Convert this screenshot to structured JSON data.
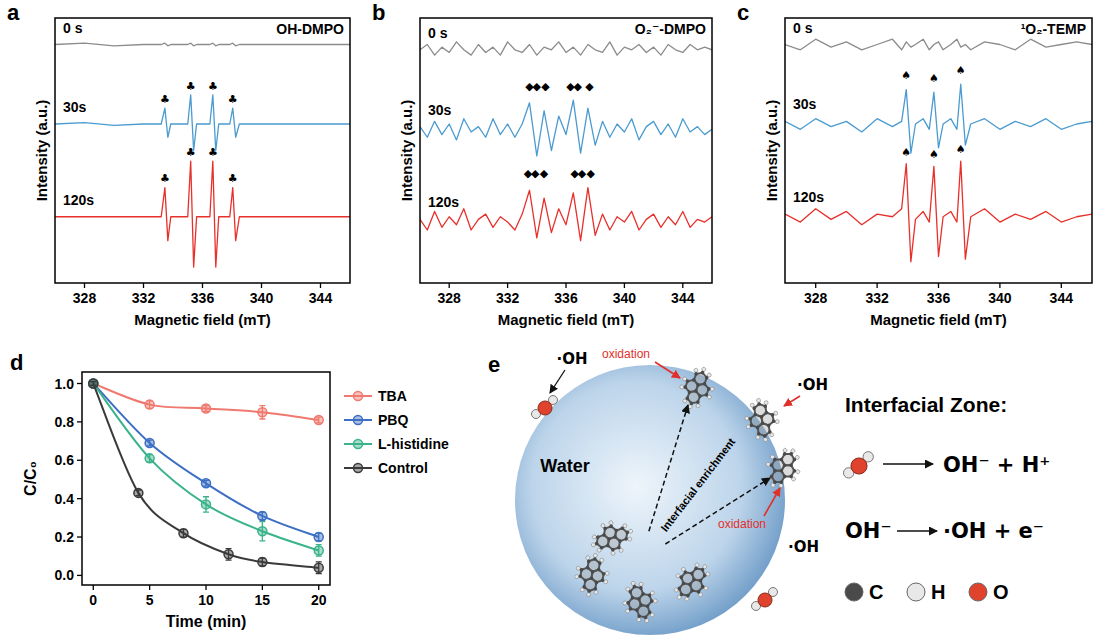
{
  "chart_data": [
    {
      "panel_label": "a",
      "type": "line",
      "title": "OH-DMPO",
      "xlabel": "Magnetic field (mT)",
      "ylabel": "Intensity (a.u.)",
      "tick_labels": "x",
      "x": [
        326,
        328,
        330,
        332,
        333.2,
        333.45,
        333.65,
        333.85,
        334.2,
        335.0,
        335.2,
        335.4,
        335.6,
        335.9,
        336.5,
        336.7,
        336.9,
        337.1,
        337.5,
        337.85,
        338.05,
        338.25,
        338.5,
        340,
        342,
        344,
        346
      ],
      "xlim": [
        326,
        346
      ],
      "xticks": [
        328,
        332,
        336,
        340,
        344
      ],
      "ylim": [
        0,
        10
      ],
      "series": [
        {
          "name": "0 s",
          "color": "#8c8c8c",
          "values": [
            9,
            9.05,
            8.95,
            9,
            9,
            9.05,
            8.95,
            9,
            9,
            9,
            9.05,
            8.95,
            9,
            9,
            9,
            9.05,
            8.95,
            9,
            9,
            9,
            9.05,
            8.95,
            9,
            9,
            9,
            9,
            9
          ]
        },
        {
          "name": "30s",
          "color": "#4a9bd0",
          "values": [
            6,
            6.05,
            5.95,
            6,
            6,
            6.6,
            5.5,
            6,
            6,
            6,
            7.1,
            5.0,
            6,
            6,
            6,
            7.1,
            5.0,
            6,
            6,
            6,
            6.6,
            5.5,
            6,
            6,
            6,
            6,
            6
          ]
        },
        {
          "name": "120s",
          "color": "#e8302a",
          "values": [
            2.5,
            2.5,
            2.5,
            2.5,
            2.5,
            3.6,
            1.6,
            2.5,
            2.5,
            2.5,
            4.6,
            0.6,
            2.5,
            2.5,
            2.5,
            4.6,
            0.6,
            2.5,
            2.5,
            2.5,
            3.6,
            1.6,
            2.5,
            2.5,
            2.5,
            2.5,
            2.5
          ]
        }
      ],
      "annotations": [
        {
          "text": "♣",
          "x": 333.45,
          "y": 6.8
        },
        {
          "text": "♣",
          "x": 335.2,
          "y": 7.3
        },
        {
          "text": "♣",
          "x": 336.7,
          "y": 7.3
        },
        {
          "text": "♣",
          "x": 338.05,
          "y": 6.8
        },
        {
          "text": "♣",
          "x": 333.45,
          "y": 3.8
        },
        {
          "text": "♣",
          "x": 335.2,
          "y": 4.8
        },
        {
          "text": "♣",
          "x": 336.7,
          "y": 4.8
        },
        {
          "text": "♣",
          "x": 338.05,
          "y": 3.8
        }
      ]
    },
    {
      "panel_label": "b",
      "type": "line",
      "title": "O₂⁻-DMPO",
      "xlabel": "Magnetic field (mT)",
      "ylabel": "Intensity (a.u.)",
      "tick_labels": "x",
      "x": [
        326,
        326.5,
        327,
        327.5,
        328,
        328.5,
        329,
        329.5,
        330,
        330.5,
        331,
        331.5,
        332,
        332.5,
        333,
        333.5,
        334,
        334.5,
        335,
        335.5,
        336,
        336.5,
        337,
        337.5,
        338,
        338.5,
        339,
        339.5,
        340,
        340.5,
        341,
        341.5,
        342,
        342.5,
        343,
        343.5,
        344,
        344.5,
        345,
        345.5,
        346
      ],
      "xlim": [
        326,
        346
      ],
      "xticks": [
        328,
        332,
        336,
        340,
        344
      ],
      "ylim": [
        0,
        10
      ],
      "series": [
        {
          "name": "0 s",
          "color": "#8c8c8c",
          "values": [
            8.8,
            9.0,
            8.6,
            8.9,
            8.7,
            9.1,
            8.8,
            8.6,
            9.0,
            8.7,
            8.9,
            8.6,
            9.1,
            8.8,
            8.7,
            9.0,
            8.6,
            8.9,
            8.8,
            9.1,
            8.7,
            8.9,
            8.6,
            9.0,
            8.8,
            8.7,
            9.1,
            8.6,
            8.9,
            8.8,
            9.0,
            8.7,
            8.9,
            8.6,
            9.0,
            8.8,
            8.7,
            9.0,
            8.8,
            8.9,
            8.8
          ]
        },
        {
          "name": "30s",
          "color": "#4a9bd0",
          "values": [
            5.9,
            5.5,
            6.1,
            5.6,
            6.0,
            5.4,
            6.2,
            5.7,
            5.9,
            5.5,
            6.2,
            5.6,
            6.0,
            5.5,
            6.0,
            6.8,
            4.8,
            6.5,
            5.0,
            6.3,
            5.6,
            6.9,
            4.9,
            6.6,
            5.2,
            6.1,
            5.5,
            6.0,
            5.7,
            6.2,
            5.4,
            5.9,
            6.1,
            5.6,
            6.0,
            5.5,
            6.2,
            5.7,
            5.9,
            5.6,
            5.8
          ]
        },
        {
          "name": "120s",
          "color": "#e8302a",
          "values": [
            2.4,
            2.0,
            2.7,
            2.1,
            2.5,
            2.2,
            2.8,
            2.0,
            2.4,
            2.6,
            2.1,
            2.5,
            2.3,
            2.0,
            2.6,
            3.5,
            1.7,
            3.2,
            1.9,
            2.8,
            2.2,
            3.4,
            1.6,
            3.6,
            1.8,
            2.6,
            2.0,
            2.5,
            2.3,
            2.7,
            2.0,
            2.4,
            2.6,
            2.1,
            2.5,
            2.2,
            2.7,
            2.1,
            2.4,
            2.3,
            2.5
          ]
        }
      ],
      "annotations": [
        {
          "text": "◆",
          "x": 333.5,
          "y": 7.3
        },
        {
          "text": "◆",
          "x": 334.0,
          "y": 7.3
        },
        {
          "text": "◆",
          "x": 334.6,
          "y": 7.3
        },
        {
          "text": "◆",
          "x": 336.3,
          "y": 7.3
        },
        {
          "text": "◆",
          "x": 336.8,
          "y": 7.3
        },
        {
          "text": "◆",
          "x": 337.6,
          "y": 7.3
        },
        {
          "text": "◆",
          "x": 333.4,
          "y": 4.0
        },
        {
          "text": "◆",
          "x": 333.9,
          "y": 4.0
        },
        {
          "text": "◆",
          "x": 334.5,
          "y": 4.0
        },
        {
          "text": "◆",
          "x": 336.6,
          "y": 4.0
        },
        {
          "text": "◆",
          "x": 337.1,
          "y": 4.0
        },
        {
          "text": "◆",
          "x": 337.7,
          "y": 4.0
        }
      ]
    },
    {
      "panel_label": "c",
      "type": "line",
      "title": "¹O₂-TEMP",
      "xlabel": "Magnetic field (mT)",
      "ylabel": "Intensity (a.u.)",
      "tick_labels": "x",
      "x": [
        326,
        327,
        328,
        329,
        330,
        331,
        332,
        333,
        333.6,
        333.9,
        334.2,
        334.5,
        335,
        335.4,
        335.7,
        336.0,
        336.3,
        336.8,
        337.2,
        337.45,
        337.75,
        338.1,
        339,
        340,
        341,
        342,
        343,
        344,
        345,
        346
      ],
      "xlim": [
        326,
        346
      ],
      "xticks": [
        328,
        332,
        336,
        340,
        344
      ],
      "ylim": [
        0,
        10
      ],
      "series": [
        {
          "name": "0 s",
          "color": "#8c8c8c",
          "values": [
            9.0,
            8.8,
            9.2,
            8.9,
            9.1,
            8.8,
            9.0,
            9.2,
            8.8,
            9.1,
            8.9,
            9.0,
            9.2,
            8.8,
            9.0,
            9.1,
            8.8,
            9.0,
            9.2,
            8.9,
            9.0,
            8.8,
            9.1,
            9.0,
            8.8,
            9.2,
            8.9,
            9.0,
            9.1,
            9.0
          ]
        },
        {
          "name": "30s",
          "color": "#4a9bd0",
          "values": [
            6.1,
            5.8,
            6.2,
            5.9,
            6.1,
            5.7,
            6.2,
            5.9,
            6.1,
            7.3,
            4.9,
            6.0,
            6.2,
            5.8,
            7.2,
            5.1,
            6.0,
            6.2,
            5.8,
            7.5,
            5.2,
            6.0,
            6.2,
            5.8,
            6.1,
            5.9,
            6.2,
            5.8,
            6.0,
            6.1
          ]
        },
        {
          "name": "120s",
          "color": "#e8302a",
          "values": [
            2.6,
            2.3,
            2.8,
            2.4,
            2.7,
            2.2,
            2.6,
            2.5,
            2.8,
            4.5,
            0.8,
            2.4,
            2.7,
            2.3,
            4.4,
            1.0,
            2.5,
            2.7,
            2.3,
            4.6,
            0.9,
            2.5,
            2.8,
            2.3,
            2.6,
            2.4,
            2.7,
            2.3,
            2.5,
            2.6
          ]
        }
      ],
      "annotations": [
        {
          "text": "♠",
          "x": 333.9,
          "y": 7.7
        },
        {
          "text": "♠",
          "x": 335.7,
          "y": 7.6
        },
        {
          "text": "♠",
          "x": 337.45,
          "y": 7.9
        },
        {
          "text": "♠",
          "x": 333.9,
          "y": 4.8
        },
        {
          "text": "♠",
          "x": 335.7,
          "y": 4.7
        },
        {
          "text": "♠",
          "x": 337.45,
          "y": 4.9
        }
      ]
    },
    {
      "panel_label": "d",
      "type": "line",
      "xlabel": "Time (min)",
      "ylabel": "C/C₀",
      "xlim": [
        -1,
        21
      ],
      "xticks": [
        0,
        5,
        10,
        15,
        20
      ],
      "ylim": [
        -0.05,
        1.06
      ],
      "yticks": [
        {
          "value": 0,
          "label": "0.0"
        },
        0.2,
        0.4,
        0.6,
        0.8,
        {
          "value": 1,
          "label": "1.0"
        }
      ],
      "legend": "right",
      "marker": "circle",
      "series": [
        {
          "name": "TBA",
          "color": "#f0796f",
          "x": [
            0,
            5,
            10,
            15,
            20
          ],
          "values": [
            1.0,
            0.89,
            0.87,
            0.85,
            0.81
          ],
          "errors": [
            0.01,
            0.02,
            0.015,
            0.035,
            0.015
          ]
        },
        {
          "name": "PBQ",
          "color": "#3d6fc4",
          "x": [
            0,
            5,
            10,
            15,
            20
          ],
          "values": [
            1.0,
            0.69,
            0.48,
            0.31,
            0.2
          ],
          "errors": [
            0.01,
            0.015,
            0.015,
            0.02,
            0.02
          ]
        },
        {
          "name": "L-histidine",
          "color": "#3bb38a",
          "x": [
            0,
            5,
            10,
            15,
            20
          ],
          "values": [
            1.0,
            0.61,
            0.37,
            0.23,
            0.13
          ],
          "errors": [
            0.01,
            0.02,
            0.04,
            0.05,
            0.03
          ]
        },
        {
          "name": "Control",
          "color": "#3a3a3a",
          "x": [
            0,
            4,
            8,
            12,
            15,
            20
          ],
          "values": [
            1.0,
            0.43,
            0.22,
            0.11,
            0.07,
            0.04
          ],
          "errors": [
            0.01,
            0.015,
            0.02,
            0.03,
            0.02,
            0.03
          ]
        }
      ]
    }
  ],
  "diagram": {
    "panel_label": "e",
    "sphere_label": "Water",
    "radicals": [
      "·OH",
      "·OH",
      "·OH"
    ],
    "oxidation_labels": [
      "oxidation",
      "oxidation"
    ],
    "arrow_label": "Interfacial enrichment",
    "zone_title": "Interfacial Zone:",
    "reactions": [
      {
        "products": "OH⁻ + H⁺"
      },
      {
        "reactant": "OH⁻",
        "products": "·OH + e⁻"
      }
    ],
    "atom_legend": [
      {
        "symbol": "C",
        "color": "#4a4a4a"
      },
      {
        "symbol": "H",
        "color": "#e8e8e8"
      },
      {
        "symbol": "O",
        "color": "#e0432d"
      }
    ]
  }
}
